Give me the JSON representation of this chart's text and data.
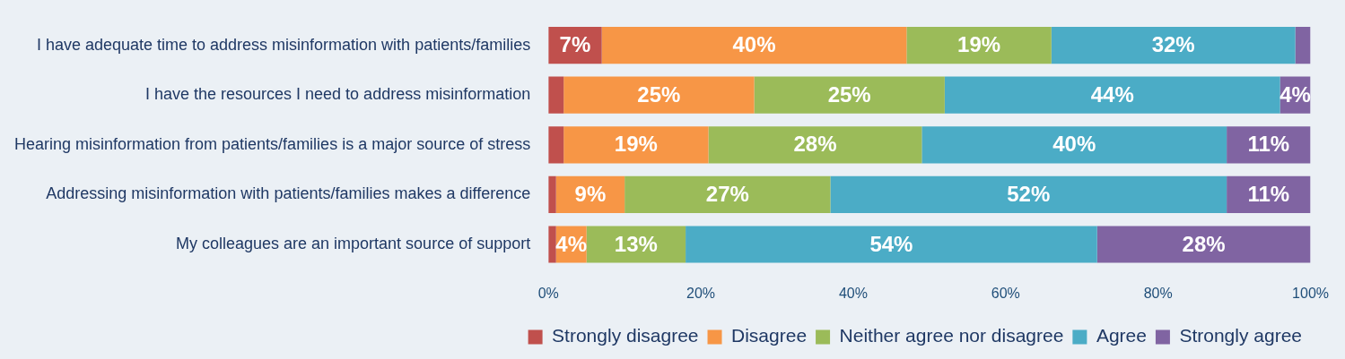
{
  "chart_data": {
    "type": "bar",
    "orientation": "horizontal",
    "stacked": true,
    "categories": [
      "I have adequate time to address misinformation with patients/families",
      "I have the resources I need to address misinformation",
      "Hearing misinformation from patients/families is a major source of stress",
      "Addressing misinformation with patients/families makes a difference",
      "My colleagues are an important source of support"
    ],
    "series": [
      {
        "name": "Strongly disagree",
        "color": "#c0504d",
        "values": [
          7,
          2,
          2,
          1,
          1
        ],
        "value_labels": [
          "7%",
          null,
          null,
          null,
          null
        ]
      },
      {
        "name": "Disagree",
        "color": "#f79646",
        "values": [
          40,
          25,
          19,
          9,
          4
        ],
        "value_labels": [
          "40%",
          "25%",
          "19%",
          "9%",
          "4%"
        ]
      },
      {
        "name": "Neither agree nor disagree",
        "color": "#9bbb59",
        "values": [
          19,
          25,
          28,
          27,
          13
        ],
        "value_labels": [
          "19%",
          "25%",
          "28%",
          "27%",
          "13%"
        ]
      },
      {
        "name": "Agree",
        "color": "#4bacc6",
        "values": [
          32,
          44,
          40,
          52,
          54
        ],
        "value_labels": [
          "32%",
          "44%",
          "40%",
          "52%",
          "54%"
        ]
      },
      {
        "name": "Strongly agree",
        "color": "#8064a2",
        "values": [
          2,
          4,
          11,
          11,
          28
        ],
        "value_labels": [
          null,
          "4%",
          "11%",
          "11%",
          "28%"
        ]
      }
    ],
    "xlim": [
      0,
      100
    ],
    "xticks": [
      {
        "value": 0,
        "label": "0%"
      },
      {
        "value": 20,
        "label": "20%"
      },
      {
        "value": 40,
        "label": "40%"
      },
      {
        "value": 60,
        "label": "60%"
      },
      {
        "value": 80,
        "label": "80%"
      },
      {
        "value": 100,
        "label": "100%"
      }
    ],
    "grid": false,
    "legend": "bottom"
  }
}
